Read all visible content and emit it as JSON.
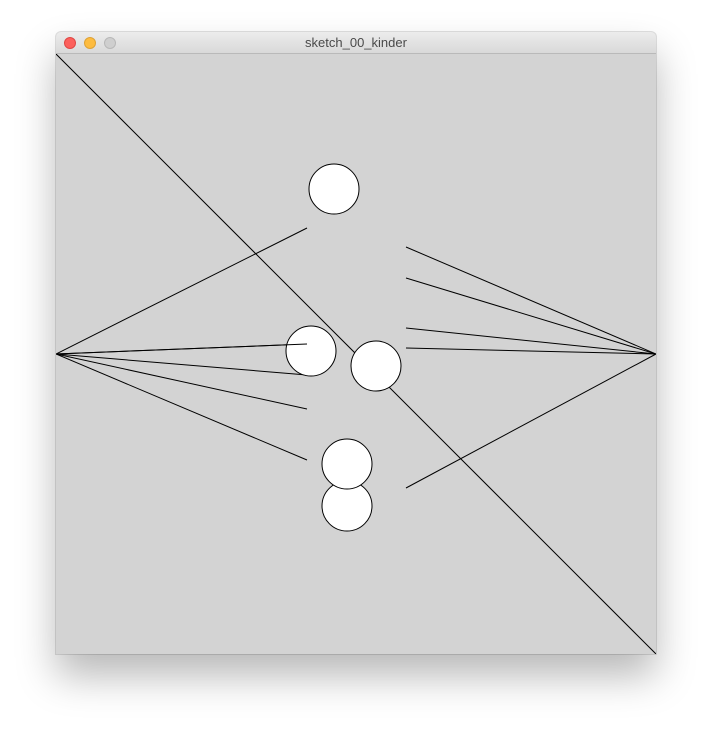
{
  "window": {
    "title": "sketch_00_kinder",
    "controls": {
      "close": "close-button",
      "minimize": "minimize-button",
      "zoom": "zoom-button"
    }
  },
  "canvas": {
    "background": "#d3d3d3",
    "stroke": "#000000",
    "fill": "#ffffff"
  }
}
